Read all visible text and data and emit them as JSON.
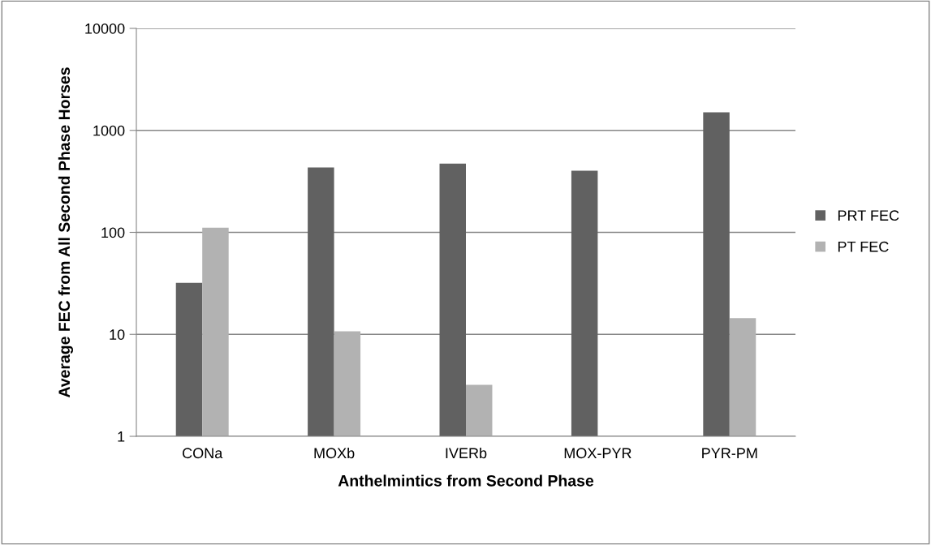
{
  "chart_data": {
    "type": "bar",
    "xlabel": "Anthelmintics from Second Phase",
    "ylabel": "Average FEC from All Second Phase Horses",
    "categories": [
      "CONa",
      "MOXb",
      "IVERb",
      "MOX-PYR",
      "PYR-PM"
    ],
    "series": [
      {
        "name": "PRT FEC",
        "color": "#616161",
        "values": [
          32,
          433,
          473,
          403,
          1500
        ]
      },
      {
        "name": "PT FEC",
        "color": "#b2b2b2",
        "values": [
          111,
          10.7,
          3.2,
          null,
          14.4
        ]
      }
    ],
    "log": "y",
    "ylim": [
      1,
      10000
    ],
    "yticks": [
      1,
      10,
      100,
      1000,
      10000
    ],
    "grid": "y",
    "legend": "right"
  }
}
